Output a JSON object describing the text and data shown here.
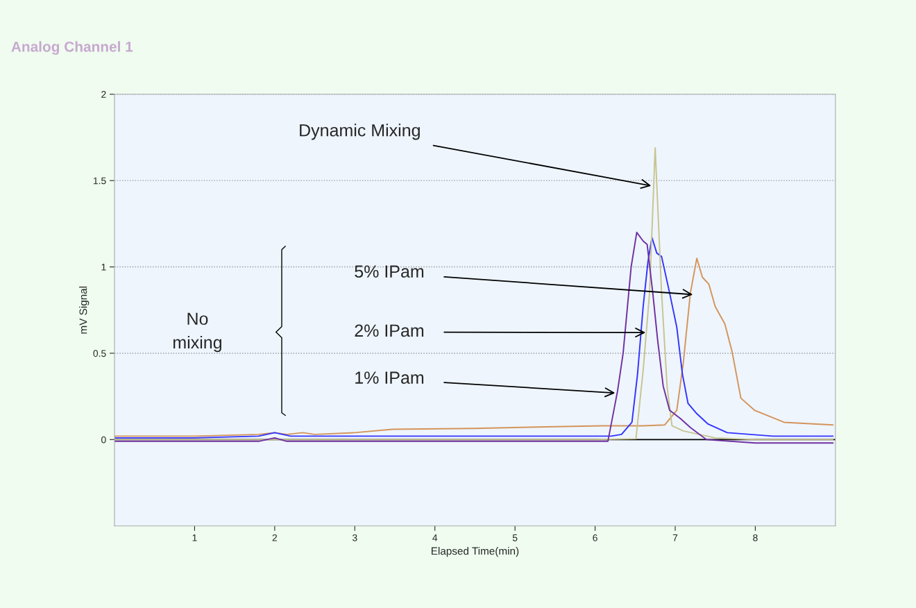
{
  "chart_data": {
    "type": "line",
    "title": "Analog Channel 1",
    "xlabel": "Elapsed Time(min)",
    "ylabel": "mV Signal",
    "xlim": [
      0,
      9
    ],
    "ylim": [
      -0.5,
      2
    ],
    "xticks": [
      1,
      2,
      3,
      4,
      5,
      6,
      7,
      8
    ],
    "yticks": [
      0,
      0.5,
      1,
      1.5,
      2
    ],
    "grid": "y",
    "ref_lines": [
      {
        "axis": "y",
        "value": 0,
        "color": "#000000"
      }
    ],
    "series": [
      {
        "color": "#d4945a",
        "x": [
          0,
          1,
          1.8,
          2.0,
          2.15,
          2.35,
          2.5,
          3.0,
          3.47,
          4.5,
          5.5,
          6.09,
          6.6,
          6.87,
          7.02,
          7.1,
          7.19,
          7.27,
          7.34,
          7.42,
          7.5,
          7.62,
          7.71,
          7.82,
          7.99,
          8.36,
          8.97
        ],
        "values": [
          0.02,
          0.02,
          0.03,
          0.04,
          0.03,
          0.04,
          0.03,
          0.04,
          0.06,
          0.065,
          0.075,
          0.08,
          0.08,
          0.085,
          0.17,
          0.44,
          0.85,
          1.05,
          0.94,
          0.9,
          0.77,
          0.67,
          0.51,
          0.24,
          0.17,
          0.1,
          0.085
        ]
      },
      {
        "color": "#3333ff",
        "x": [
          0,
          1,
          1.8,
          2.0,
          2.2,
          3.0,
          5.0,
          6.2,
          6.33,
          6.46,
          6.53,
          6.6,
          6.66,
          6.71,
          6.77,
          6.83,
          6.93,
          7.02,
          7.09,
          7.16,
          7.27,
          7.41,
          7.65,
          8.22,
          8.97
        ],
        "values": [
          0.01,
          0.01,
          0.02,
          0.04,
          0.02,
          0.02,
          0.02,
          0.02,
          0.03,
          0.1,
          0.38,
          0.77,
          1.03,
          1.17,
          1.08,
          1.06,
          0.85,
          0.65,
          0.38,
          0.21,
          0.15,
          0.09,
          0.04,
          0.02,
          0.02
        ]
      },
      {
        "color": "#c8c490",
        "x": [
          0,
          2,
          4,
          6.0,
          6.51,
          6.6,
          6.68,
          6.75,
          6.83,
          6.9,
          6.96,
          7.1,
          7.5,
          8.0,
          8.97
        ],
        "values": [
          0.0,
          0.0,
          0.0,
          0.0,
          0.005,
          0.4,
          0.85,
          1.69,
          0.85,
          0.3,
          0.08,
          0.05,
          0.01,
          0.0,
          0.0
        ]
      },
      {
        "color": "#7030a0",
        "x": [
          0,
          1,
          1.8,
          2.0,
          2.15,
          2.4,
          4.0,
          6.0,
          6.16,
          6.28,
          6.35,
          6.45,
          6.52,
          6.6,
          6.65,
          6.72,
          6.78,
          6.85,
          6.93,
          7.07,
          7.19,
          7.39,
          8.0,
          8.97
        ],
        "values": [
          -0.01,
          -0.01,
          -0.01,
          0.01,
          -0.01,
          -0.01,
          -0.01,
          -0.01,
          -0.01,
          0.28,
          0.5,
          1.0,
          1.2,
          1.15,
          1.13,
          0.85,
          0.58,
          0.31,
          0.17,
          0.12,
          0.07,
          0.0,
          -0.02,
          -0.02
        ]
      }
    ],
    "annotations": [
      {
        "text": "Dynamic Mixing",
        "x": 6.7,
        "y": 1.47
      },
      {
        "text": "5% IPam",
        "x": 7.22,
        "y": 0.84
      },
      {
        "text": "2% IPam",
        "x": 6.63,
        "y": 0.62
      },
      {
        "text": "1% IPam",
        "x": 6.25,
        "y": 0.27
      },
      "No\nmixing"
    ]
  }
}
